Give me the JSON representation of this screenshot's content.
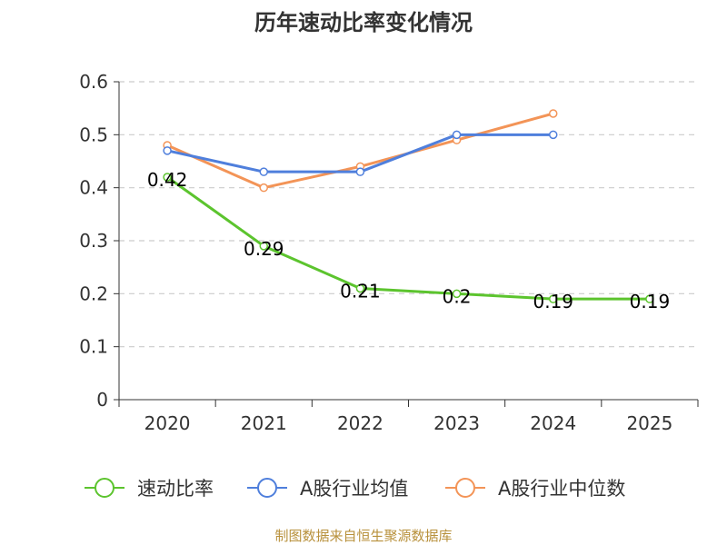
{
  "chart_data": {
    "type": "line",
    "title": "历年速动比率变化情况",
    "categories": [
      "2020",
      "2021",
      "2022",
      "2023",
      "2024",
      "2025"
    ],
    "y_ticks": [
      "0",
      "0.1",
      "0.2",
      "0.3",
      "0.4",
      "0.5",
      "0.6"
    ],
    "ylim": [
      0,
      0.6
    ],
    "grid": true,
    "legend_position": "bottom",
    "series": [
      {
        "name": "速动比率",
        "color": "#5cc42e",
        "values": [
          0.42,
          0.29,
          0.21,
          0.2,
          0.19,
          0.19
        ],
        "labels": [
          "0.42",
          "0.29",
          "0.21",
          "0.2",
          "0.19",
          "0.19"
        ],
        "show_labels": true
      },
      {
        "name": "A股行业均值",
        "color": "#4f7fdc",
        "values": [
          0.47,
          0.43,
          0.43,
          0.5,
          0.5,
          null
        ],
        "show_labels": false
      },
      {
        "name": "A股行业中位数",
        "color": "#f39457",
        "values": [
          0.48,
          0.4,
          0.44,
          0.49,
          0.54,
          null
        ],
        "show_labels": false
      }
    ],
    "source": "制图数据来自恒生聚源数据库"
  }
}
